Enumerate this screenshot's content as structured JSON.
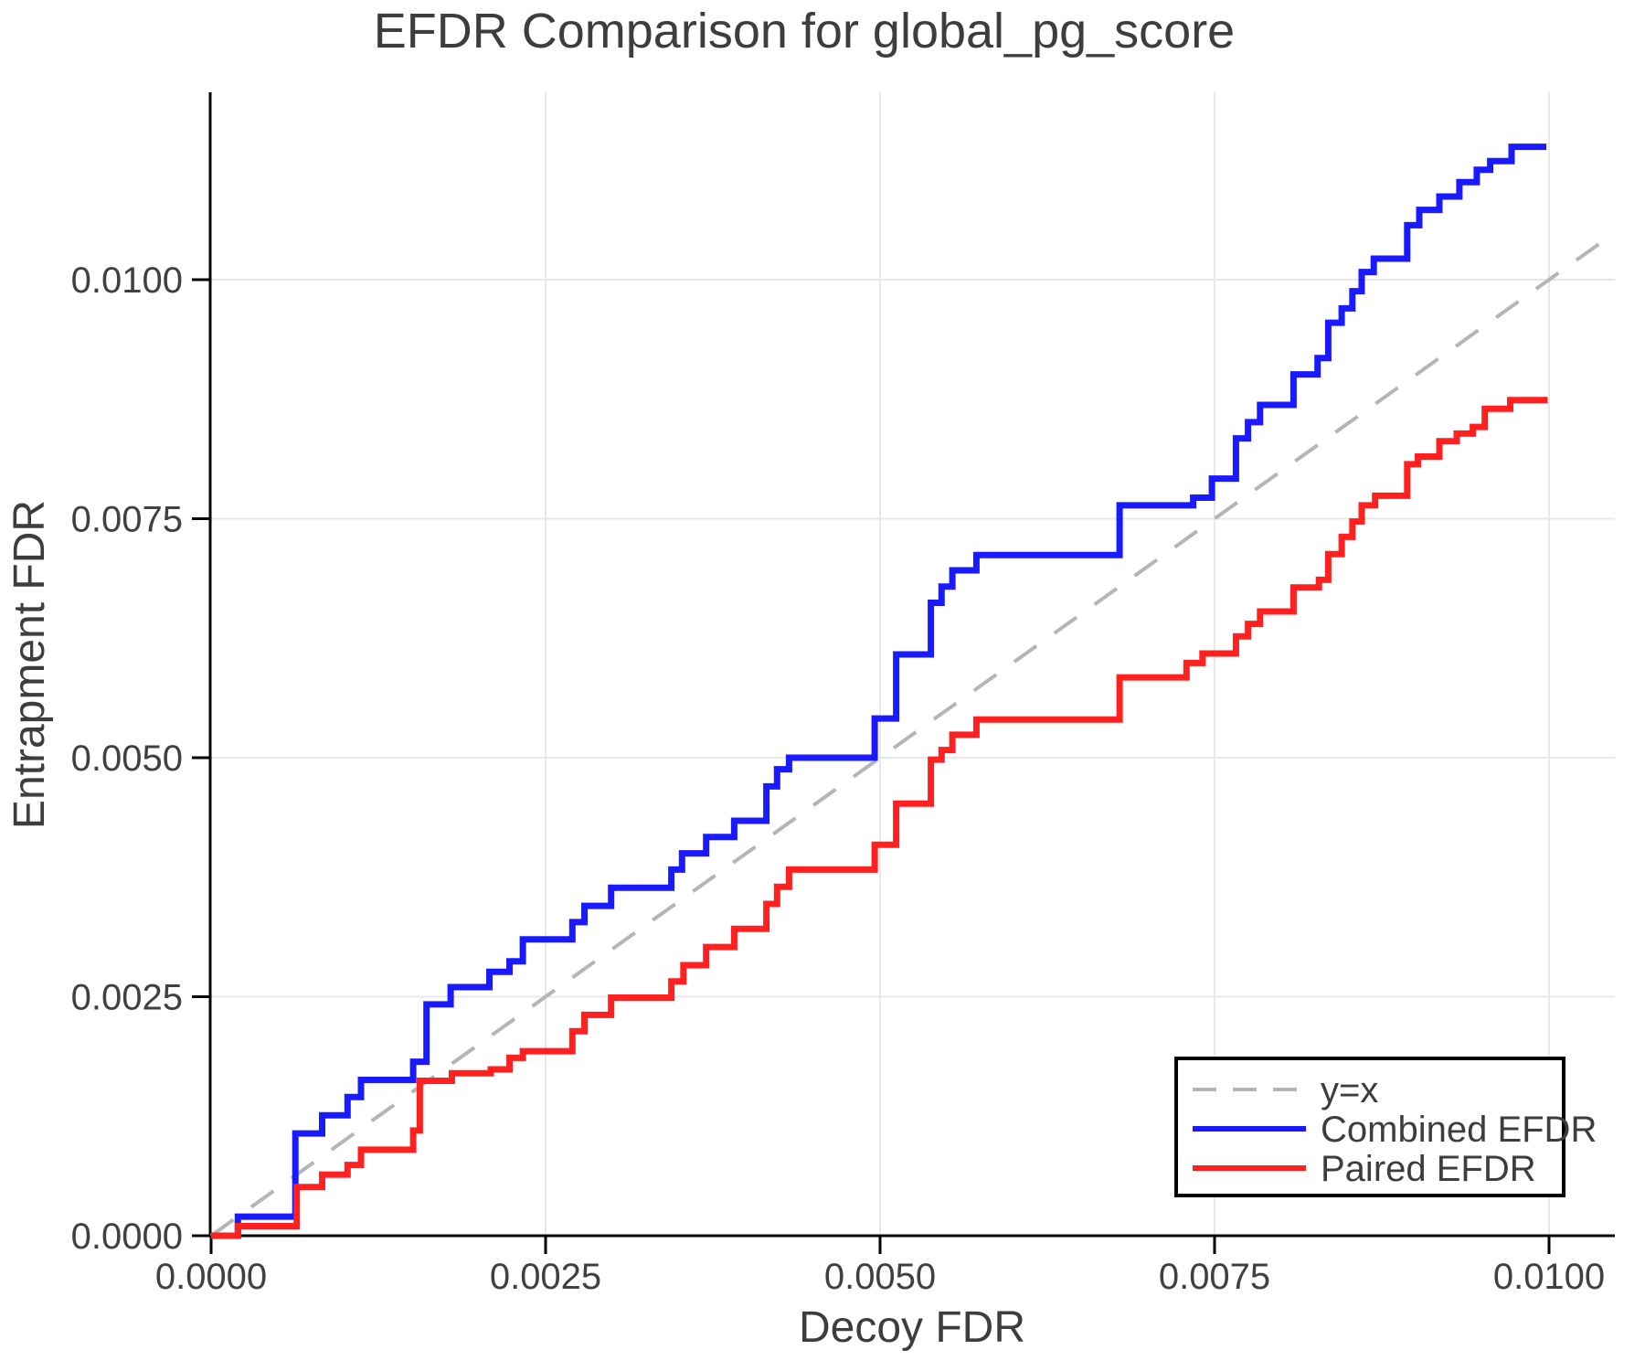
{
  "title": "EFDR Comparison for global_pg_score",
  "chart_data": {
    "type": "line",
    "subtype": "step-post",
    "title": "EFDR Comparison for global_pg_score",
    "xlabel": "Decoy FDR",
    "ylabel": "Entrapment FDR",
    "xlim": [
      0,
      0.010492
    ],
    "ylim": [
      0,
      0.011963
    ],
    "grid": true,
    "grid_color": "#e8e8e8",
    "axis_color": "#000000",
    "text_color": "#3d3d3d",
    "x_ticks": [
      {
        "v": 0.0,
        "label": "0.0000"
      },
      {
        "v": 0.0025,
        "label": "0.0025"
      },
      {
        "v": 0.005,
        "label": "0.0050"
      },
      {
        "v": 0.0075,
        "label": "0.0075"
      },
      {
        "v": 0.01,
        "label": "0.0100"
      }
    ],
    "y_ticks": [
      {
        "v": 0.0,
        "label": "0.0000"
      },
      {
        "v": 0.0025,
        "label": "0.0025"
      },
      {
        "v": 0.005,
        "label": "0.0050"
      },
      {
        "v": 0.0075,
        "label": "0.0075"
      },
      {
        "v": 0.01,
        "label": "0.0100"
      }
    ],
    "reference_line": {
      "label": "y=x",
      "color": "#b5b5b5",
      "dashed": true,
      "from": [
        0,
        0
      ],
      "to": [
        0.010492,
        0.010492
      ]
    },
    "legend": {
      "position": "lower right",
      "items": [
        {
          "label": "y=x",
          "color": "#b5b5b5",
          "dashed": true
        },
        {
          "label": "Combined EFDR",
          "color": "#1a1aff",
          "dashed": false
        },
        {
          "label": "Paired EFDR",
          "color": "#ff2020",
          "dashed": false
        }
      ]
    },
    "series": [
      {
        "name": "Combined EFDR",
        "color": "#1a1aff",
        "start": [
          0,
          0
        ],
        "end_x": 0.00998,
        "points": [
          [
            0.0002,
            0.0002
          ],
          [
            0.00063,
            0.00107
          ],
          [
            0.00083,
            0.00126
          ],
          [
            0.00102,
            0.00145
          ],
          [
            0.00112,
            0.00163
          ],
          [
            0.00151,
            0.00182
          ],
          [
            0.00161,
            0.00242
          ],
          [
            0.00179,
            0.0026
          ],
          [
            0.00208,
            0.00276
          ],
          [
            0.00223,
            0.00287
          ],
          [
            0.00233,
            0.0031
          ],
          [
            0.0027,
            0.00328
          ],
          [
            0.00279,
            0.00345
          ],
          [
            0.00299,
            0.00364
          ],
          [
            0.00344,
            0.00383
          ],
          [
            0.00352,
            0.004
          ],
          [
            0.0037,
            0.00417
          ],
          [
            0.00391,
            0.00434
          ],
          [
            0.00415,
            0.0047
          ],
          [
            0.00423,
            0.00488
          ],
          [
            0.00432,
            0.005
          ],
          [
            0.00496,
            0.00541
          ],
          [
            0.00512,
            0.00608
          ],
          [
            0.00538,
            0.00662
          ],
          [
            0.00546,
            0.00679
          ],
          [
            0.00554,
            0.00696
          ],
          [
            0.00572,
            0.00712
          ],
          [
            0.00679,
            0.00764
          ],
          [
            0.00734,
            0.00772
          ],
          [
            0.00748,
            0.00792
          ],
          [
            0.00766,
            0.00834
          ],
          [
            0.00775,
            0.00851
          ],
          [
            0.00784,
            0.00869
          ],
          [
            0.00809,
            0.00901
          ],
          [
            0.00827,
            0.00918
          ],
          [
            0.00835,
            0.00955
          ],
          [
            0.00845,
            0.0097
          ],
          [
            0.00853,
            0.00988
          ],
          [
            0.0086,
            0.01008
          ],
          [
            0.00869,
            0.01022
          ],
          [
            0.00894,
            0.01057
          ],
          [
            0.00903,
            0.01073
          ],
          [
            0.00918,
            0.01087
          ],
          [
            0.00933,
            0.01102
          ],
          [
            0.00946,
            0.01115
          ],
          [
            0.00956,
            0.01124
          ],
          [
            0.00972,
            0.01139
          ]
        ]
      },
      {
        "name": "Paired EFDR",
        "color": "#ff2020",
        "start": [
          0,
          0
        ],
        "end_x": 0.00999,
        "points": [
          [
            0.0002,
            0.0001
          ],
          [
            0.00064,
            0.00051
          ],
          [
            0.00083,
            0.00064
          ],
          [
            0.00102,
            0.00074
          ],
          [
            0.00112,
            0.0009
          ],
          [
            0.00151,
            0.0011
          ],
          [
            0.00156,
            0.00162
          ],
          [
            0.0018,
            0.0017
          ],
          [
            0.00209,
            0.00174
          ],
          [
            0.00223,
            0.00186
          ],
          [
            0.00233,
            0.00193
          ],
          [
            0.0027,
            0.00214
          ],
          [
            0.00279,
            0.00231
          ],
          [
            0.00299,
            0.00249
          ],
          [
            0.00344,
            0.00266
          ],
          [
            0.00353,
            0.00283
          ],
          [
            0.0037,
            0.00302
          ],
          [
            0.00391,
            0.00321
          ],
          [
            0.00415,
            0.00347
          ],
          [
            0.00423,
            0.00365
          ],
          [
            0.00432,
            0.00383
          ],
          [
            0.00496,
            0.00409
          ],
          [
            0.00512,
            0.00452
          ],
          [
            0.00538,
            0.00498
          ],
          [
            0.00546,
            0.00508
          ],
          [
            0.00554,
            0.00524
          ],
          [
            0.00572,
            0.0054
          ],
          [
            0.00679,
            0.00584
          ],
          [
            0.00729,
            0.00599
          ],
          [
            0.00741,
            0.00609
          ],
          [
            0.00766,
            0.00627
          ],
          [
            0.00775,
            0.0064
          ],
          [
            0.00784,
            0.00653
          ],
          [
            0.00809,
            0.00678
          ],
          [
            0.00828,
            0.00686
          ],
          [
            0.00835,
            0.00713
          ],
          [
            0.00845,
            0.00731
          ],
          [
            0.00853,
            0.00747
          ],
          [
            0.0086,
            0.00764
          ],
          [
            0.0087,
            0.00774
          ],
          [
            0.00894,
            0.00807
          ],
          [
            0.00902,
            0.00815
          ],
          [
            0.00918,
            0.00831
          ],
          [
            0.00931,
            0.00839
          ],
          [
            0.00943,
            0.00846
          ],
          [
            0.00952,
            0.00865
          ],
          [
            0.00971,
            0.00874
          ]
        ]
      }
    ]
  }
}
